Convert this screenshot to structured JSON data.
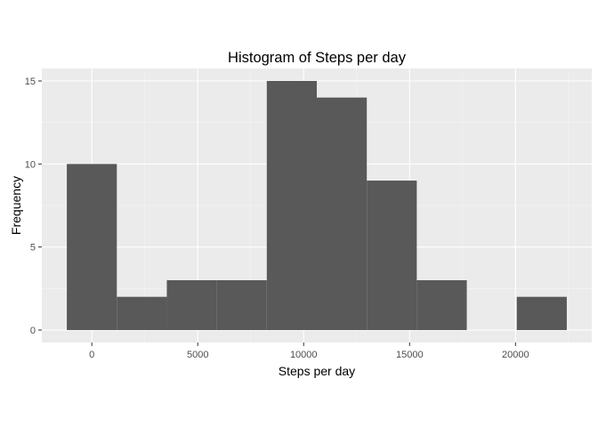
{
  "chart_data": {
    "type": "bar",
    "title": "Histogram of Steps per day",
    "xlabel": "Steps per day",
    "ylabel": "Frequency",
    "bins": [
      {
        "start": -1180,
        "end": 1180,
        "count": 10
      },
      {
        "start": 1180,
        "end": 3540,
        "count": 2
      },
      {
        "start": 3540,
        "end": 5900,
        "count": 3
      },
      {
        "start": 5900,
        "end": 8260,
        "count": 3
      },
      {
        "start": 8260,
        "end": 10620,
        "count": 15
      },
      {
        "start": 10620,
        "end": 12980,
        "count": 14
      },
      {
        "start": 12980,
        "end": 15340,
        "count": 9
      },
      {
        "start": 15340,
        "end": 17700,
        "count": 3
      },
      {
        "start": 17700,
        "end": 20060,
        "count": 0
      },
      {
        "start": 20060,
        "end": 22420,
        "count": 2
      }
    ],
    "x_ticks": [
      0,
      5000,
      10000,
      15000,
      20000
    ],
    "x_tick_labels": [
      "0",
      "5000",
      "10000",
      "15000",
      "20000"
    ],
    "y_ticks": [
      0,
      5,
      10,
      15
    ],
    "y_tick_labels": [
      "0",
      "5",
      "10",
      "15"
    ],
    "xlim": [
      -2360,
      23600
    ],
    "ylim": [
      -0.75,
      15.75
    ],
    "grid": true,
    "colors": {
      "bar": "#595959",
      "panel": "#ebebeb",
      "grid_major": "#ffffff",
      "grid_minor": "#f5f5f5"
    }
  }
}
